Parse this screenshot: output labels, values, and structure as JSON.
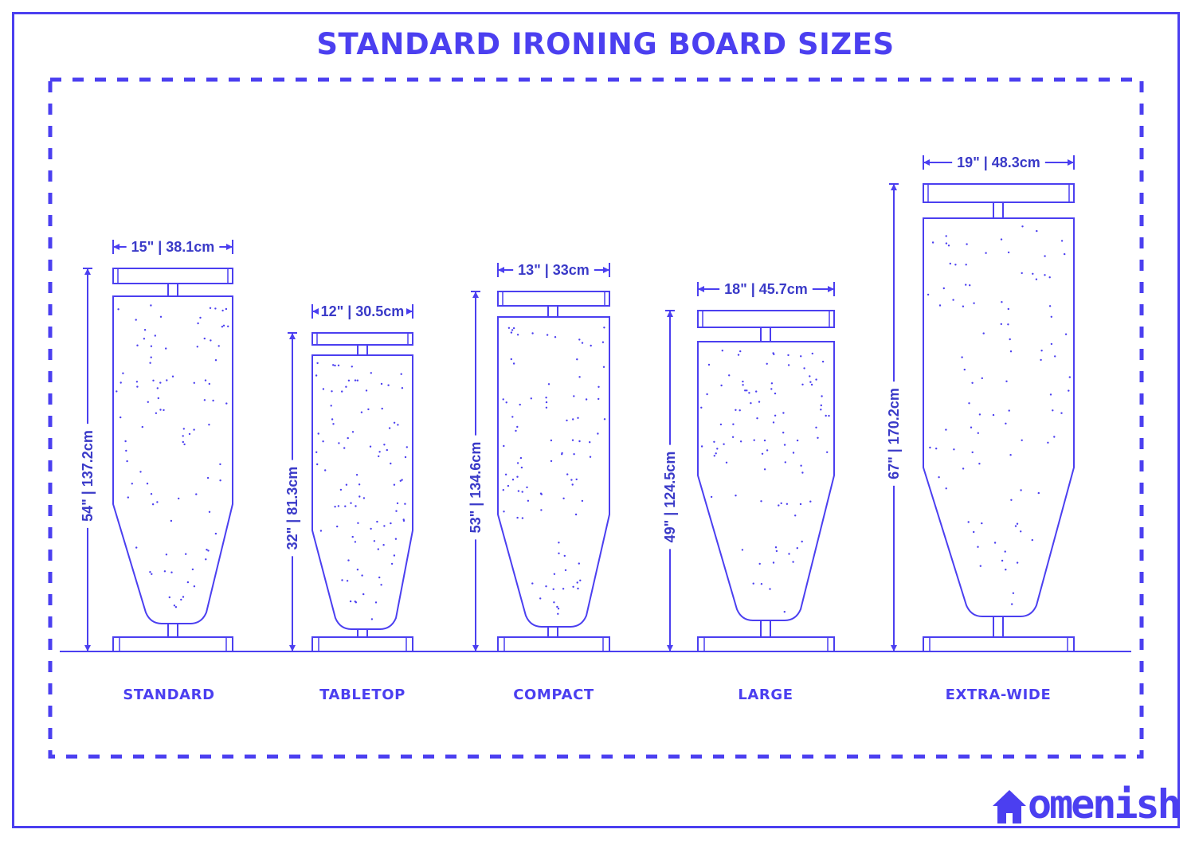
{
  "title": "STANDARD IRONING BOARD SIZES",
  "boards": [
    {
      "name": "STANDARD",
      "width_label": "15\" | 38.1cm",
      "height_label": "54\" | 137.2cm"
    },
    {
      "name": "TABLETOP",
      "width_label": "12\" | 30.5cm",
      "height_label": "32\" | 81.3cm"
    },
    {
      "name": "COMPACT",
      "width_label": "13\" | 33cm",
      "height_label": "53\" | 134.6cm"
    },
    {
      "name": "LARGE",
      "width_label": "18\" | 45.7cm",
      "height_label": "49\" | 124.5cm"
    },
    {
      "name": "EXTRA-WIDE",
      "width_label": "19\" | 48.3cm",
      "height_label": "67\" | 170.2cm"
    }
  ],
  "brand": {
    "logo_text": "omenish",
    "house_icon": "house-icon"
  },
  "colors": {
    "line": "#4b3ff0",
    "text": "#3a3ac8",
    "background": "#ffffff"
  }
}
